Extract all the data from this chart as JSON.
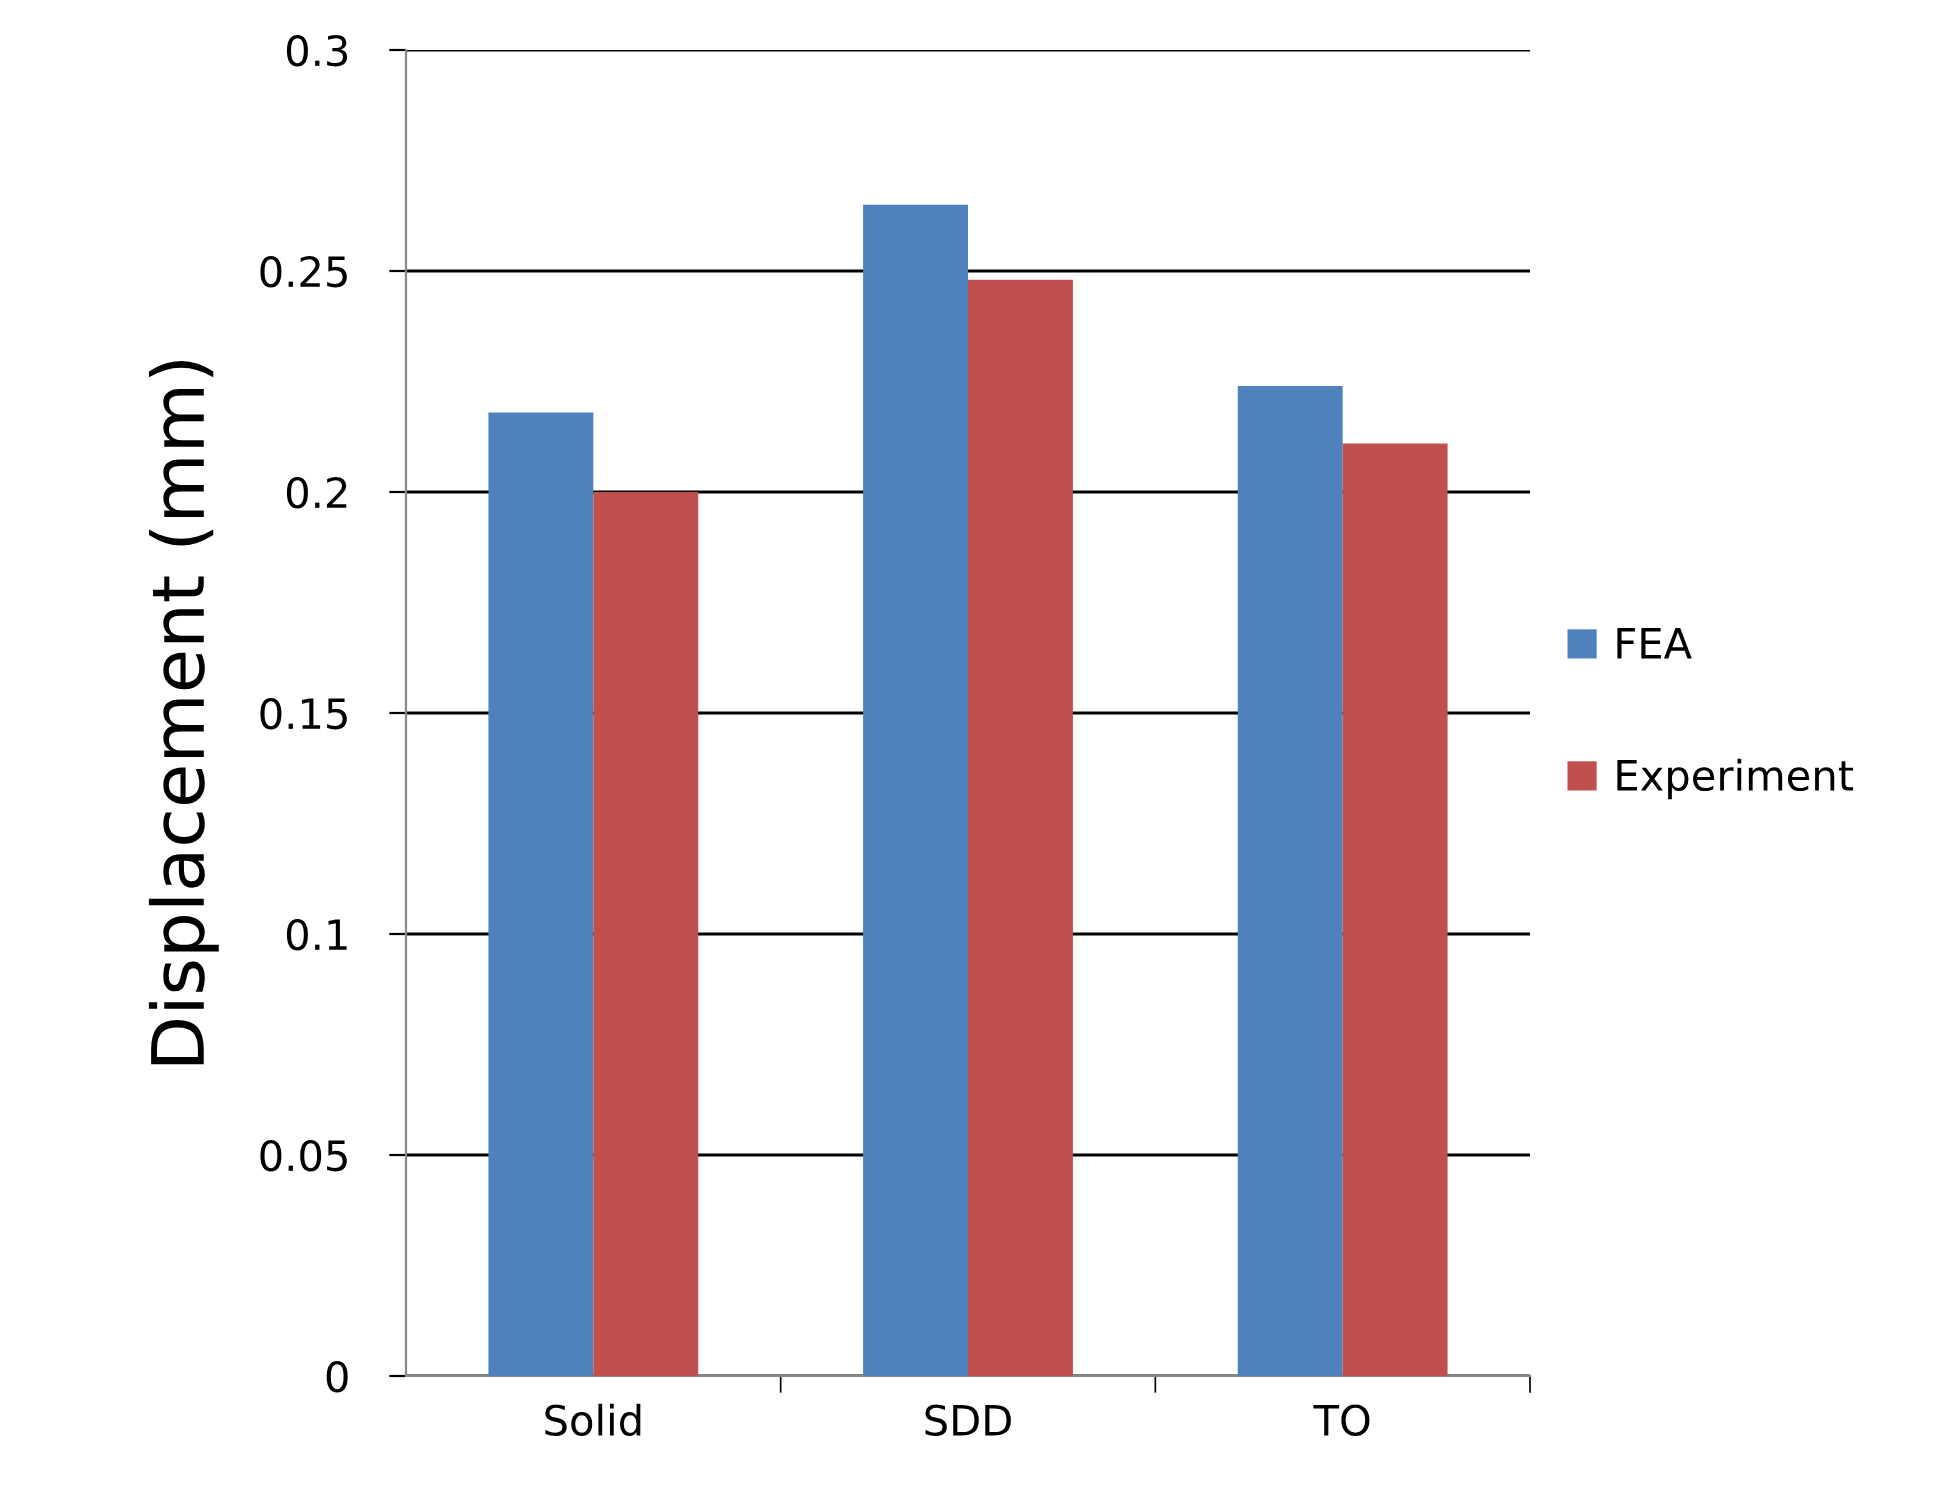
{
  "chart_data": {
    "type": "bar",
    "ylabel": "Displacement (mm)",
    "categories": [
      "Solid",
      "SDD",
      "TO"
    ],
    "series": [
      {
        "name": "FEA",
        "color": "#4f81bd",
        "values": [
          0.218,
          0.265,
          0.224
        ]
      },
      {
        "name": "Experiment",
        "color": "#c0504d",
        "values": [
          0.2,
          0.248,
          0.211
        ]
      }
    ],
    "ylim": [
      0,
      0.3
    ],
    "yticks": [
      0,
      0.05,
      0.1,
      0.15,
      0.2,
      0.25,
      0.3
    ],
    "grid": "y",
    "legend": "right"
  }
}
